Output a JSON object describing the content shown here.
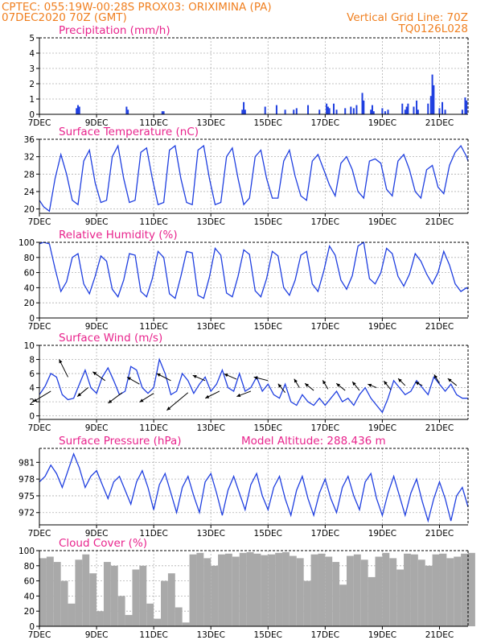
{
  "header": {
    "left_line1": "CPTEC:   055:19W-00:28S   PROX03: ORIXIMINA (PA)",
    "left_line2": "07DEC2020 70Z (GMT)",
    "right_line2": "Vertical Grid Line: 70Z",
    "right_line3": "TQ0126L028"
  },
  "colors": {
    "header": "#f07f1f",
    "title": "#e8238c",
    "series": "#1f3fe0",
    "cloud": "#a9a9a9"
  },
  "x_ticks": [
    "7DEC",
    "9DEC",
    "11DEC",
    "13DEC",
    "15DEC",
    "17DEC",
    "19DEC",
    "21DEC"
  ],
  "chart_data": [
    {
      "type": "bar",
      "name": "precipitation",
      "title": "Precipitation (mm/h)",
      "x_range_days": [
        0,
        15
      ],
      "ylim": [
        0,
        5
      ],
      "yticks": [
        0,
        1,
        2,
        3,
        4,
        5
      ],
      "x": [
        1.3,
        1.35,
        1.4,
        3.05,
        3.1,
        4.3,
        4.35,
        7.1,
        7.15,
        7.2,
        7.9,
        8.3,
        8.6,
        8.9,
        9.0,
        9.4,
        9.8,
        10.05,
        10.1,
        10.15,
        10.3,
        10.4,
        10.7,
        10.9,
        11.0,
        11.1,
        11.3,
        11.35,
        11.6,
        11.65,
        11.7,
        12.0,
        12.1,
        12.2,
        12.7,
        12.8,
        12.85,
        12.9,
        13.1,
        13.2,
        13.25,
        13.6,
        13.7,
        13.75,
        13.8,
        14.0,
        14.1,
        14.2,
        14.8,
        14.9,
        14.95
      ],
      "values": [
        0.4,
        0.6,
        0.5,
        0.5,
        0.3,
        0.2,
        0.2,
        0.3,
        0.8,
        0.3,
        0.5,
        0.6,
        0.3,
        0.3,
        0.4,
        0.6,
        0.3,
        0.7,
        0.5,
        0.4,
        0.7,
        0.3,
        0.4,
        0.5,
        0.4,
        0.6,
        1.4,
        0.9,
        0.3,
        0.6,
        0.2,
        0.4,
        0.2,
        0.3,
        0.7,
        0.3,
        0.5,
        0.7,
        0.5,
        0.9,
        0.3,
        0.7,
        1.2,
        2.6,
        1.9,
        0.4,
        0.8,
        0.3,
        0.3,
        1.1,
        0.9
      ]
    },
    {
      "type": "line",
      "name": "temperature",
      "title": "Surface Temperature (nC)",
      "x_range_days": [
        0,
        15
      ],
      "ylim": [
        19,
        36
      ],
      "yticks": [
        20,
        24,
        28,
        32,
        36
      ],
      "ytick_labels": [
        "20",
        "24",
        "28",
        "32",
        "36"
      ],
      "x": [
        0,
        0.15,
        0.35,
        0.55,
        0.75,
        0.95,
        1.15,
        1.35,
        1.55,
        1.75,
        1.95,
        2.15,
        2.35,
        2.55,
        2.75,
        2.95,
        3.15,
        3.35,
        3.55,
        3.75,
        3.95,
        4.15,
        4.35,
        4.55,
        4.75,
        4.95,
        5.15,
        5.35,
        5.55,
        5.75,
        5.95,
        6.15,
        6.35,
        6.55,
        6.75,
        6.95,
        7.15,
        7.35,
        7.55,
        7.75,
        7.95,
        8.15,
        8.35,
        8.55,
        8.75,
        8.95,
        9.15,
        9.35,
        9.55,
        9.75,
        9.95,
        10.15,
        10.35,
        10.55,
        10.75,
        10.95,
        11.15,
        11.35,
        11.55,
        11.75,
        11.95,
        12.15,
        12.35,
        12.55,
        12.75,
        12.95,
        13.15,
        13.35,
        13.55,
        13.75,
        13.95,
        14.15,
        14.35,
        14.55,
        14.75,
        14.95,
        15
      ],
      "values": [
        22,
        20.5,
        19.5,
        27,
        32.5,
        28,
        22,
        21,
        31,
        33.5,
        26,
        21.5,
        22,
        32,
        34.5,
        27,
        21.5,
        22,
        33,
        34,
        27,
        21,
        21.5,
        33.5,
        34.5,
        27,
        21.5,
        21,
        33.5,
        34.5,
        27,
        21,
        21.5,
        32,
        34,
        27,
        21,
        22.5,
        32,
        33.5,
        27,
        22.5,
        22.5,
        31,
        33.5,
        27.5,
        23,
        22,
        31,
        32.5,
        29,
        25.5,
        23,
        30.5,
        32,
        29,
        24,
        22.5,
        31,
        31.5,
        30.5,
        24.5,
        23,
        31,
        32.5,
        29,
        24,
        22.5,
        29,
        30,
        25,
        23.5,
        30,
        33,
        34.5,
        32,
        31
      ]
    },
    {
      "type": "line",
      "name": "humidity",
      "title": "Relative Humidity (%)",
      "x_range_days": [
        0,
        15
      ],
      "ylim": [
        0,
        100
      ],
      "yticks": [
        0,
        20,
        40,
        60,
        80,
        100
      ],
      "ytick_labels": [
        "0",
        "20",
        "40",
        "60",
        "80",
        "100"
      ],
      "x": [
        0,
        0.15,
        0.35,
        0.55,
        0.75,
        0.95,
        1.15,
        1.35,
        1.55,
        1.75,
        1.95,
        2.15,
        2.35,
        2.55,
        2.75,
        2.95,
        3.15,
        3.35,
        3.55,
        3.75,
        3.95,
        4.15,
        4.35,
        4.55,
        4.75,
        4.95,
        5.15,
        5.35,
        5.55,
        5.75,
        5.95,
        6.15,
        6.35,
        6.55,
        6.75,
        6.95,
        7.15,
        7.35,
        7.55,
        7.75,
        7.95,
        8.15,
        8.35,
        8.55,
        8.75,
        8.95,
        9.15,
        9.35,
        9.55,
        9.75,
        9.95,
        10.15,
        10.35,
        10.55,
        10.75,
        10.95,
        11.15,
        11.35,
        11.55,
        11.75,
        11.95,
        12.15,
        12.35,
        12.55,
        12.75,
        12.95,
        13.15,
        13.35,
        13.55,
        13.75,
        13.95,
        14.15,
        14.35,
        14.55,
        14.75,
        14.95,
        15
      ],
      "values": [
        98,
        100,
        98,
        65,
        35,
        48,
        80,
        85,
        45,
        32,
        55,
        82,
        75,
        38,
        28,
        50,
        85,
        83,
        35,
        28,
        52,
        88,
        80,
        32,
        26,
        55,
        88,
        86,
        30,
        26,
        54,
        92,
        83,
        33,
        28,
        55,
        90,
        84,
        36,
        28,
        52,
        88,
        82,
        40,
        30,
        50,
        83,
        88,
        45,
        35,
        62,
        95,
        83,
        50,
        38,
        56,
        95,
        100,
        52,
        45,
        60,
        92,
        85,
        55,
        42,
        58,
        85,
        75,
        58,
        45,
        60,
        88,
        70,
        45,
        35,
        40,
        38
      ]
    },
    {
      "type": "line",
      "name": "wind",
      "title": "Surface Wind (m/s)",
      "x_range_days": [
        0,
        15
      ],
      "ylim": [
        -0.5,
        10
      ],
      "yticks": [
        0,
        2,
        4,
        6,
        8,
        10
      ],
      "ytick_labels": [
        "0",
        "2",
        "4",
        "6",
        "8",
        "10"
      ],
      "x": [
        0,
        0.2,
        0.4,
        0.6,
        0.8,
        1.0,
        1.2,
        1.4,
        1.6,
        1.8,
        2.0,
        2.2,
        2.4,
        2.6,
        2.8,
        3.0,
        3.2,
        3.4,
        3.6,
        3.8,
        4.0,
        4.2,
        4.4,
        4.6,
        4.8,
        5.0,
        5.2,
        5.4,
        5.6,
        5.8,
        6.0,
        6.2,
        6.4,
        6.6,
        6.8,
        7.0,
        7.2,
        7.4,
        7.6,
        7.8,
        8.0,
        8.2,
        8.4,
        8.6,
        8.8,
        9.0,
        9.2,
        9.4,
        9.6,
        9.8,
        10.0,
        10.2,
        10.4,
        10.6,
        10.8,
        11.0,
        11.2,
        11.4,
        11.6,
        11.8,
        12.0,
        12.2,
        12.4,
        12.6,
        12.8,
        13.0,
        13.2,
        13.4,
        13.6,
        13.8,
        14.0,
        14.2,
        14.4,
        14.6,
        14.8,
        15.0
      ],
      "values": [
        3,
        4.2,
        6,
        5.5,
        3,
        2.3,
        2.5,
        4.5,
        6.5,
        4,
        3.2,
        5.5,
        6.8,
        5,
        3,
        3.5,
        7,
        6.5,
        4,
        3.2,
        4,
        8,
        6,
        3,
        3.5,
        6,
        5,
        3.2,
        4.5,
        5.5,
        3.5,
        4.5,
        6.5,
        4,
        3.5,
        6,
        3.5,
        4,
        5.5,
        3.5,
        4.5,
        3,
        2.5,
        4.5,
        2,
        1.5,
        3,
        2,
        1.5,
        2.5,
        1.5,
        2.5,
        3.5,
        2,
        2.5,
        1.5,
        3,
        4,
        2.5,
        1.5,
        0.5,
        2.5,
        5,
        4,
        3,
        3.5,
        5,
        4,
        3,
        5.5,
        4.5,
        3.5,
        4.5,
        3,
        2.5,
        2.5
      ],
      "vectors": [
        {
          "x": 0.4,
          "y": 3.5,
          "dx": -1.0,
          "dy": -0.6
        },
        {
          "x": 1.0,
          "y": 5.5,
          "dx": -0.5,
          "dy": 1.0
        },
        {
          "x": 1.7,
          "y": 4.0,
          "dx": -0.6,
          "dy": -0.5
        },
        {
          "x": 2.3,
          "y": 5.0,
          "dx": -0.7,
          "dy": 0.5
        },
        {
          "x": 2.9,
          "y": 3.3,
          "dx": -0.8,
          "dy": -0.6
        },
        {
          "x": 3.5,
          "y": 4.5,
          "dx": -0.7,
          "dy": 0.4
        },
        {
          "x": 4.0,
          "y": 3.2,
          "dx": -0.8,
          "dy": -0.5
        },
        {
          "x": 4.6,
          "y": 5.0,
          "dx": -0.8,
          "dy": 0.4
        },
        {
          "x": 5.2,
          "y": 3.3,
          "dx": -1.2,
          "dy": -1.0
        },
        {
          "x": 5.8,
          "y": 5.0,
          "dx": -0.7,
          "dy": 0.3
        },
        {
          "x": 6.3,
          "y": 3.5,
          "dx": -0.8,
          "dy": -0.4
        },
        {
          "x": 6.9,
          "y": 5.2,
          "dx": -0.7,
          "dy": 0.3
        },
        {
          "x": 7.4,
          "y": 3.5,
          "dx": -0.8,
          "dy": -0.3
        },
        {
          "x": 8.0,
          "y": 5.0,
          "dx": -0.8,
          "dy": 0.2
        },
        {
          "x": 8.6,
          "y": 3.3,
          "dx": -0.4,
          "dy": 0.5
        },
        {
          "x": 9.1,
          "y": 4.0,
          "dx": -0.3,
          "dy": 0.5
        },
        {
          "x": 9.6,
          "y": 3.6,
          "dx": -0.5,
          "dy": 0.4
        },
        {
          "x": 10.1,
          "y": 3.8,
          "dx": -0.3,
          "dy": 0.5
        },
        {
          "x": 10.7,
          "y": 3.6,
          "dx": -0.5,
          "dy": 0.4
        },
        {
          "x": 11.2,
          "y": 3.6,
          "dx": -0.4,
          "dy": 0.5
        },
        {
          "x": 11.8,
          "y": 4.0,
          "dx": -0.5,
          "dy": 0.2
        },
        {
          "x": 12.3,
          "y": 3.7,
          "dx": -0.4,
          "dy": 0.5
        },
        {
          "x": 12.8,
          "y": 4.3,
          "dx": -0.4,
          "dy": 0.4
        },
        {
          "x": 13.4,
          "y": 4.3,
          "dx": -0.4,
          "dy": 0.2
        },
        {
          "x": 14.0,
          "y": 4.6,
          "dx": -0.3,
          "dy": 0.5
        },
        {
          "x": 14.6,
          "y": 4.3,
          "dx": -0.5,
          "dy": 0.4
        }
      ]
    },
    {
      "type": "line",
      "name": "pressure",
      "title": "Surface Pressure (hPa)",
      "subtitle": "Model Altitude: 288.436 m",
      "x_range_days": [
        0,
        15
      ],
      "ylim": [
        969.8,
        983.5
      ],
      "yticks": [
        972,
        975,
        978,
        981
      ],
      "ytick_labels": [
        "972",
        "975",
        "978",
        "981"
      ],
      "x": [
        0,
        0.2,
        0.4,
        0.6,
        0.8,
        1.0,
        1.2,
        1.4,
        1.6,
        1.8,
        2.0,
        2.2,
        2.4,
        2.6,
        2.8,
        3.0,
        3.2,
        3.4,
        3.6,
        3.8,
        4.0,
        4.2,
        4.4,
        4.6,
        4.8,
        5.0,
        5.2,
        5.4,
        5.6,
        5.8,
        6.0,
        6.2,
        6.4,
        6.6,
        6.8,
        7.0,
        7.2,
        7.4,
        7.6,
        7.8,
        8.0,
        8.2,
        8.4,
        8.6,
        8.8,
        9.0,
        9.2,
        9.4,
        9.6,
        9.8,
        10.0,
        10.2,
        10.4,
        10.6,
        10.8,
        11.0,
        11.2,
        11.4,
        11.6,
        11.8,
        12.0,
        12.2,
        12.4,
        12.6,
        12.8,
        13.0,
        13.2,
        13.4,
        13.6,
        13.8,
        14.0,
        14.2,
        14.4,
        14.6,
        14.8,
        15.0
      ],
      "values": [
        977.5,
        978.5,
        980.5,
        979,
        976.5,
        979.5,
        982.5,
        980,
        976.5,
        978.5,
        979.5,
        977,
        974.5,
        977.5,
        978.5,
        976,
        973.5,
        977.5,
        979.5,
        976.5,
        972.5,
        977,
        979,
        975.5,
        972,
        976.5,
        978.5,
        975,
        972,
        977.5,
        979,
        975.5,
        971.5,
        976,
        978.5,
        975.5,
        972.5,
        977,
        979,
        975,
        972.5,
        976.5,
        978.5,
        974.5,
        971.5,
        976,
        978.5,
        974.5,
        971.5,
        975.5,
        978,
        974.5,
        972,
        976.5,
        978.5,
        975,
        972.5,
        977.5,
        979,
        974.5,
        971.5,
        975.5,
        978.5,
        975,
        971.5,
        975.5,
        978,
        974,
        970.5,
        974.5,
        977.5,
        974.5,
        970.5,
        975,
        976.5,
        973
      ]
    },
    {
      "type": "area",
      "name": "cloud",
      "title": "Cloud Cover (%)",
      "x_range_days": [
        0,
        15
      ],
      "ylim": [
        0,
        100
      ],
      "yticks": [
        0,
        20,
        40,
        60,
        80,
        100
      ],
      "ytick_labels": [
        "0",
        "20",
        "40",
        "60",
        "80",
        "100"
      ],
      "x": [
        0,
        0.25,
        0.5,
        0.75,
        1.0,
        1.25,
        1.5,
        1.75,
        2.0,
        2.25,
        2.5,
        2.75,
        3.0,
        3.25,
        3.5,
        3.75,
        4.0,
        4.25,
        4.5,
        4.75,
        5.0,
        5.25,
        5.5,
        5.75,
        6.0,
        6.25,
        6.5,
        6.75,
        7.0,
        7.25,
        7.5,
        7.75,
        8.0,
        8.25,
        8.5,
        8.75,
        9.0,
        9.25,
        9.5,
        9.75,
        10.0,
        10.25,
        10.5,
        10.75,
        11.0,
        11.25,
        11.5,
        11.75,
        12.0,
        12.25,
        12.5,
        12.75,
        13.0,
        13.25,
        13.5,
        13.75,
        14.0,
        14.25,
        14.5,
        14.75,
        15.0
      ],
      "values": [
        90,
        92,
        85,
        60,
        30,
        88,
        95,
        70,
        20,
        85,
        80,
        40,
        15,
        75,
        80,
        30,
        10,
        60,
        70,
        25,
        5,
        95,
        97,
        90,
        80,
        95,
        96,
        92,
        97,
        98,
        96,
        94,
        95,
        97,
        98,
        93,
        90,
        60,
        95,
        96,
        92,
        85,
        55,
        93,
        95,
        88,
        65,
        92,
        97,
        90,
        75,
        96,
        95,
        88,
        80,
        95,
        96,
        90,
        92,
        96,
        97
      ]
    }
  ]
}
